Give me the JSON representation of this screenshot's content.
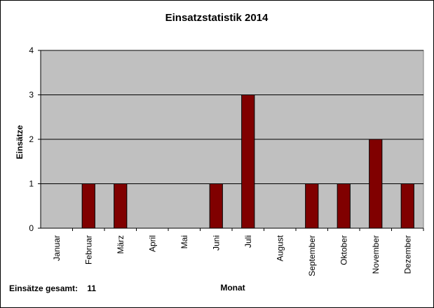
{
  "chart_data": {
    "type": "bar",
    "title": "Einsatzstatistik 2014",
    "xlabel": "Monat",
    "ylabel": "Einsätze",
    "categories": [
      "Januar",
      "Februar",
      "März",
      "April",
      "Mai",
      "Juni",
      "Juli",
      "August",
      "September",
      "Oktober",
      "November",
      "Dezember"
    ],
    "values": [
      0,
      1,
      1,
      0,
      0,
      1,
      3,
      0,
      1,
      1,
      2,
      1
    ],
    "ylim": [
      0,
      4
    ],
    "yticks": [
      0,
      1,
      2,
      3,
      4
    ],
    "grid": true,
    "legend": "none",
    "colors": {
      "bar": "#800000",
      "plot_background": "#c0c0c0",
      "gridline": "#000000"
    }
  },
  "summary": {
    "label": "Einsätze gesamt:",
    "value": "11"
  }
}
